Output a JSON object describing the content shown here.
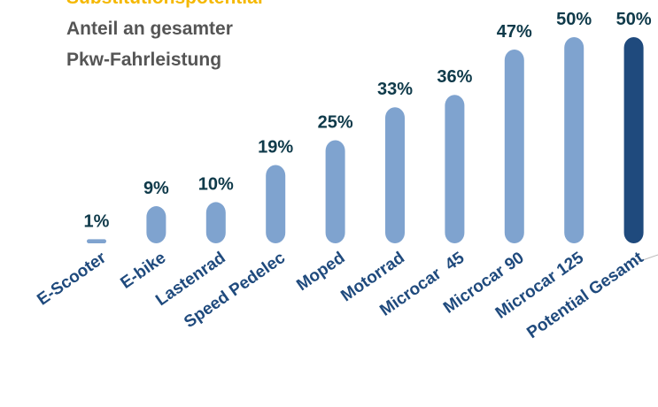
{
  "chart_data": {
    "type": "bar",
    "title": "Substitutionspotential",
    "subtitle": [
      "Anteil an gesamter",
      "Pkw-Fahrleistung"
    ],
    "categories": [
      "E-Scooter",
      "E-bike",
      "Lastenrad",
      "Speed Pedelec",
      "Moped",
      "Motorrad",
      "Microcar  45",
      "Microcar 90",
      "Microcar 125",
      "Potential Gesamt"
    ],
    "values": [
      1,
      9,
      10,
      19,
      25,
      33,
      36,
      47,
      50,
      50
    ],
    "value_labels": [
      "1%",
      "9%",
      "10%",
      "19%",
      "25%",
      "33%",
      "36%",
      "47%",
      "50%",
      "50%"
    ],
    "colors": [
      "#7fa3cf",
      "#7fa3cf",
      "#7fa3cf",
      "#7fa3cf",
      "#7fa3cf",
      "#7fa3cf",
      "#7fa3cf",
      "#7fa3cf",
      "#7fa3cf",
      "#1f4a7d"
    ],
    "ylim": [
      0,
      50
    ]
  }
}
